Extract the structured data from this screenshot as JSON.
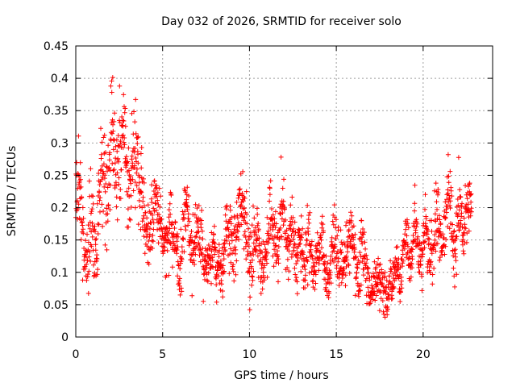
{
  "chart_data": {
    "type": "scatter",
    "title": "Day 032 of 2026, SRMTID for receiver solo",
    "xlabel": "GPS time / hours",
    "ylabel": "SRMTID / TECUs",
    "xlim": [
      0,
      24
    ],
    "ylim": [
      0,
      0.45
    ],
    "x_ticks": [
      0,
      5,
      10,
      15,
      20
    ],
    "x_tick_labels": [
      "0",
      "5",
      "10",
      "15",
      "20"
    ],
    "y_ticks": [
      0,
      0.05,
      0.1,
      0.15,
      0.2,
      0.25,
      0.3,
      0.35,
      0.4,
      0.45
    ],
    "y_tick_labels": [
      "0",
      "0.05",
      "0.1",
      "0.15",
      "0.2",
      "0.25",
      "0.3",
      "0.35",
      "0.4",
      "0.45"
    ],
    "grid": true,
    "marker": "+",
    "colors": {
      "series": "#ff0000",
      "grid": "#a0a0a0",
      "axis": "#000000"
    },
    "series": [
      {
        "name": "SRMTID",
        "envelope": {
          "x": [
            0,
            0.5,
            1,
            1.5,
            2,
            2.5,
            3,
            3.5,
            4,
            4.5,
            5,
            5.5,
            6,
            6.5,
            7,
            7.5,
            8,
            8.5,
            9,
            9.5,
            10,
            10.5,
            11,
            11.5,
            12,
            12.5,
            13,
            13.5,
            14,
            14.5,
            15,
            15.5,
            16,
            16.5,
            17,
            17.5,
            18,
            18.5,
            19,
            19.5,
            20,
            20.5,
            21,
            21.5,
            22,
            22.5,
            22.8
          ],
          "center": [
            0.21,
            0.17,
            0.15,
            0.22,
            0.28,
            0.3,
            0.27,
            0.25,
            0.2,
            0.19,
            0.17,
            0.14,
            0.13,
            0.18,
            0.14,
            0.13,
            0.12,
            0.13,
            0.17,
            0.18,
            0.15,
            0.13,
            0.14,
            0.17,
            0.16,
            0.15,
            0.13,
            0.14,
            0.12,
            0.12,
            0.13,
            0.14,
            0.12,
            0.12,
            0.08,
            0.07,
            0.08,
            0.09,
            0.14,
            0.15,
            0.14,
            0.15,
            0.17,
            0.18,
            0.15,
            0.2,
            0.18
          ],
          "spread": [
            0.08,
            0.07,
            0.07,
            0.08,
            0.09,
            0.09,
            0.08,
            0.07,
            0.06,
            0.05,
            0.05,
            0.05,
            0.05,
            0.08,
            0.05,
            0.05,
            0.04,
            0.05,
            0.06,
            0.06,
            0.06,
            0.05,
            0.05,
            0.06,
            0.06,
            0.05,
            0.05,
            0.05,
            0.05,
            0.05,
            0.05,
            0.05,
            0.05,
            0.05,
            0.04,
            0.04,
            0.04,
            0.04,
            0.05,
            0.05,
            0.05,
            0.05,
            0.06,
            0.06,
            0.06,
            0.06,
            0.05
          ],
          "sample_step_hours": 0.012
        }
      }
    ]
  }
}
